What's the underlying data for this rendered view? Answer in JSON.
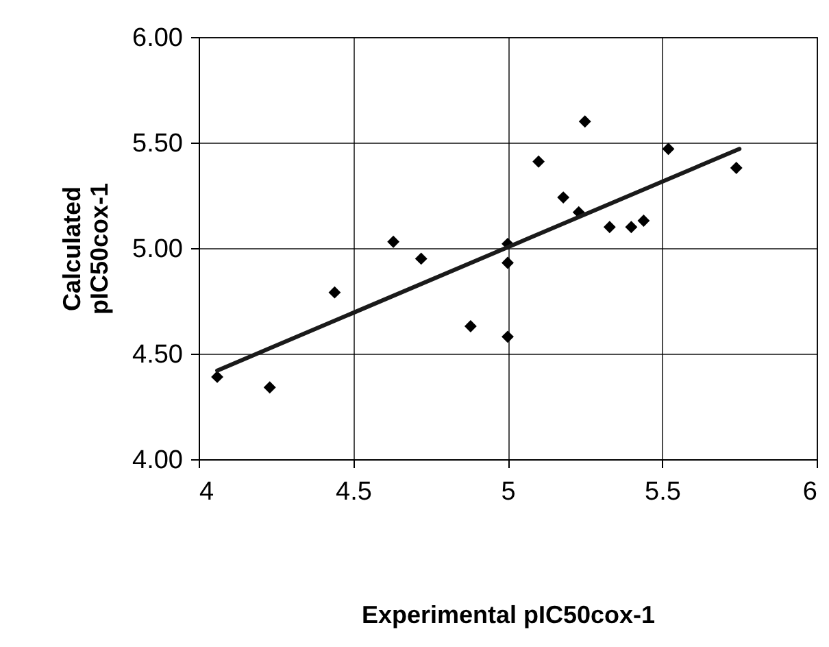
{
  "chart_data": {
    "type": "scatter",
    "xlabel": "Experimental  pIC50cox-1",
    "ylabel": "Calculated\npIC50cox-1",
    "xlim": [
      4,
      6
    ],
    "xticks": [
      4,
      4.5,
      5,
      5.5,
      6
    ],
    "ylim": [
      4,
      6
    ],
    "yticks": [
      {
        "value": 4,
        "label": "4.00"
      },
      {
        "value": 4.5,
        "label": "4.50"
      },
      {
        "value": 5,
        "label": "5.00"
      },
      {
        "value": 5.5,
        "label": "5.50"
      },
      {
        "value": 6,
        "label": "6.00"
      }
    ],
    "grid": true,
    "series": [
      {
        "marker": "diamond",
        "color": "#000000",
        "x": [
          4.06,
          4.23,
          4.44,
          4.63,
          4.72,
          4.88,
          5.0,
          5.0,
          5.0,
          5.1,
          5.18,
          5.23,
          5.25,
          5.33,
          5.4,
          5.44,
          5.52,
          5.74
        ],
        "values": [
          4.39,
          4.34,
          4.79,
          5.03,
          4.95,
          4.63,
          5.02,
          4.93,
          4.58,
          5.41,
          5.24,
          5.17,
          5.6,
          5.1,
          5.1,
          5.13,
          5.47,
          5.38
        ]
      },
      {
        "type": "line",
        "marker": "none",
        "color": "#1a1a1a",
        "x": [
          4.06,
          5.75
        ],
        "values": [
          4.42,
          5.47
        ]
      }
    ]
  }
}
